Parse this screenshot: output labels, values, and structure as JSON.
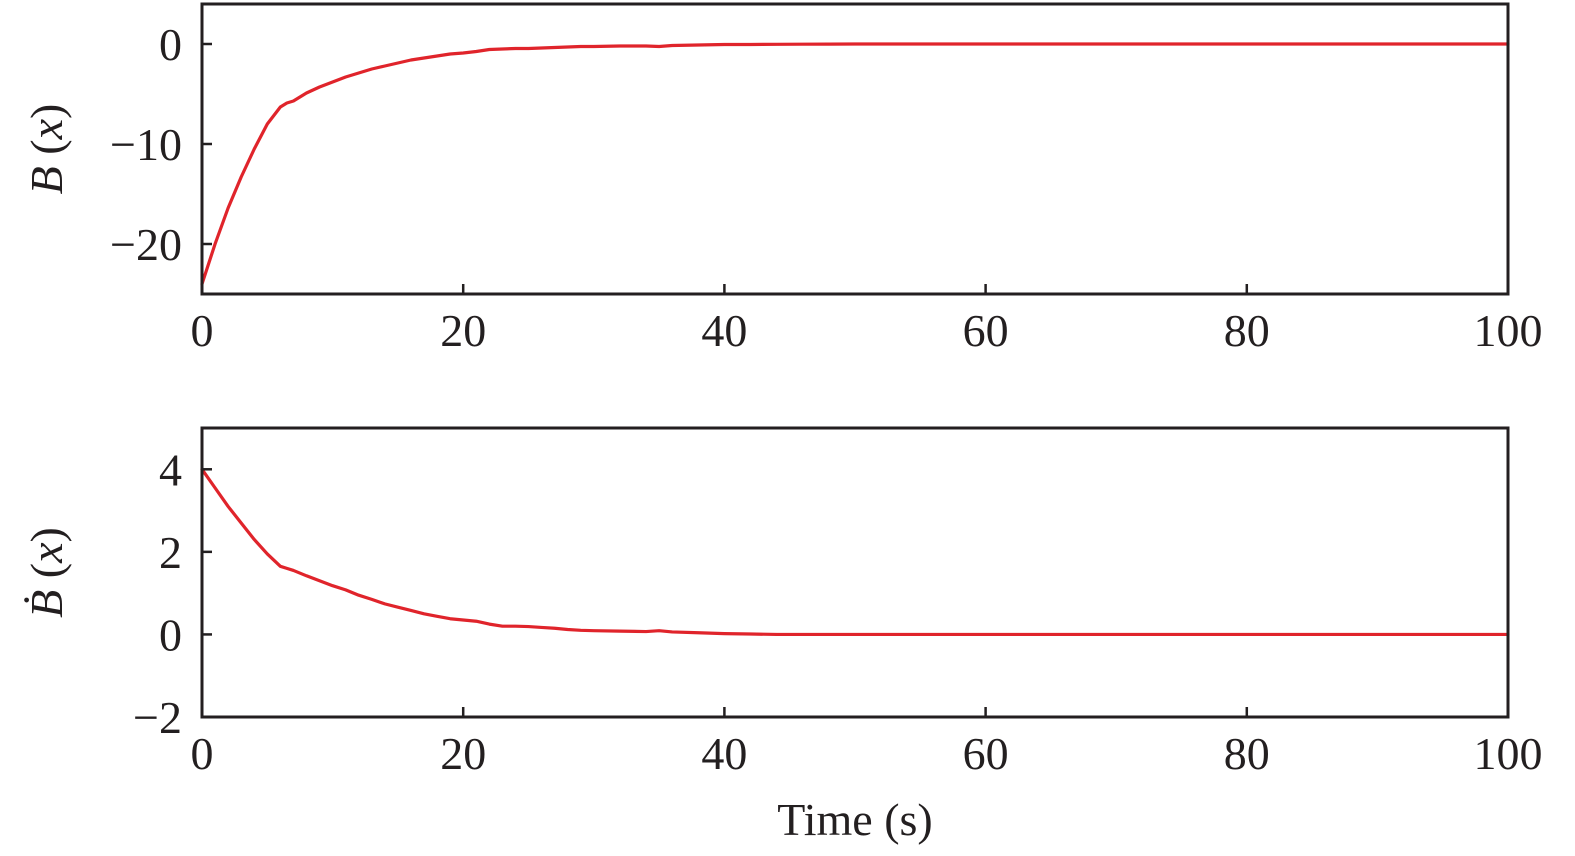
{
  "accent_color": "#e0242b",
  "axis_color": "#231f20",
  "chart_data": [
    {
      "type": "line",
      "title": "",
      "xlabel": "",
      "ylabel": "B (x)",
      "xlim": [
        0,
        100
      ],
      "ylim": [
        -25,
        4
      ],
      "xticks": [
        0,
        20,
        40,
        60,
        80,
        100
      ],
      "yticks": [
        0,
        -10,
        -20
      ],
      "xtick_labels": [
        "0",
        "20",
        "40",
        "60",
        "80",
        "100"
      ],
      "ytick_labels": [
        "0",
        "−10",
        "−20"
      ],
      "grid": false,
      "legend": "none",
      "series": [
        {
          "color": "#e0242b",
          "x": [
            0,
            1,
            2,
            3,
            4,
            5,
            6,
            6.5,
            7,
            8,
            9,
            10,
            11,
            12,
            13,
            14,
            15,
            16,
            17,
            18,
            19,
            20,
            21,
            22,
            23,
            24,
            25,
            26,
            27,
            28,
            29,
            30,
            32,
            34,
            35,
            36,
            38,
            40,
            42,
            44,
            46,
            48,
            50,
            55,
            60,
            70,
            80,
            90,
            100
          ],
          "y": [
            -24.0,
            -20.0,
            -16.4,
            -13.3,
            -10.5,
            -8.0,
            -6.3,
            -5.9,
            -5.7,
            -4.9,
            -4.3,
            -3.8,
            -3.3,
            -2.9,
            -2.5,
            -2.2,
            -1.9,
            -1.6,
            -1.4,
            -1.2,
            -1.0,
            -0.9,
            -0.75,
            -0.55,
            -0.5,
            -0.45,
            -0.45,
            -0.4,
            -0.35,
            -0.3,
            -0.25,
            -0.25,
            -0.2,
            -0.2,
            -0.25,
            -0.15,
            -0.1,
            -0.05,
            -0.05,
            -0.03,
            -0.02,
            -0.01,
            0,
            0,
            0,
            0,
            0,
            0,
            0
          ]
        }
      ]
    },
    {
      "type": "line",
      "title": "",
      "xlabel": "Time (s)",
      "ylabel": "Ḃ (x)",
      "xlim": [
        0,
        100
      ],
      "ylim": [
        -2,
        5
      ],
      "xticks": [
        0,
        20,
        40,
        60,
        80,
        100
      ],
      "yticks": [
        4,
        2,
        0,
        -2
      ],
      "xtick_labels": [
        "0",
        "20",
        "40",
        "60",
        "80",
        "100"
      ],
      "ytick_labels": [
        "4",
        "2",
        "0",
        "−2"
      ],
      "grid": false,
      "legend": "none",
      "series": [
        {
          "color": "#e0242b",
          "x": [
            0,
            1,
            2,
            3,
            4,
            5,
            6,
            6.5,
            7,
            8,
            9,
            10,
            11,
            12,
            13,
            14,
            15,
            16,
            17,
            18,
            19,
            20,
            21,
            22,
            23,
            24,
            25,
            26,
            27,
            28,
            29,
            30,
            32,
            34,
            35,
            36,
            38,
            40,
            42,
            44,
            46,
            50,
            60,
            70,
            80,
            90,
            100
          ],
          "y": [
            4.0,
            3.55,
            3.1,
            2.7,
            2.3,
            1.95,
            1.65,
            1.6,
            1.55,
            1.42,
            1.3,
            1.18,
            1.08,
            0.95,
            0.85,
            0.74,
            0.66,
            0.58,
            0.5,
            0.44,
            0.38,
            0.35,
            0.32,
            0.25,
            0.2,
            0.2,
            0.19,
            0.17,
            0.15,
            0.12,
            0.1,
            0.09,
            0.08,
            0.07,
            0.09,
            0.06,
            0.04,
            0.02,
            0.01,
            0.0,
            0.0,
            0.0,
            0.0,
            0.0,
            0.0,
            0.0,
            0.0
          ]
        }
      ]
    }
  ]
}
